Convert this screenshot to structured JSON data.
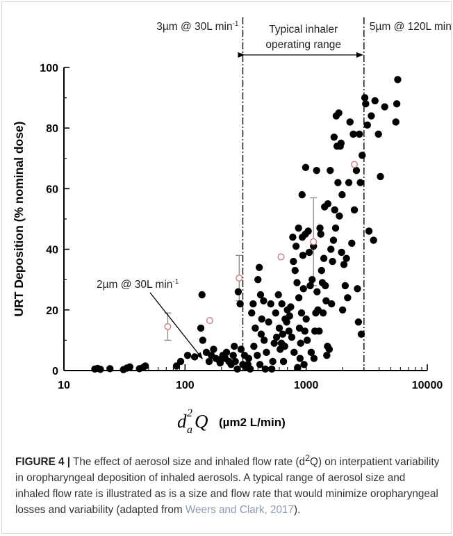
{
  "chart_data": {
    "type": "scatter",
    "x_scale": "log",
    "xlim": [
      10,
      10000
    ],
    "ylim": [
      0,
      100
    ],
    "ylabel": "URT Deposition (% nominal dose)",
    "xlabel_symbol": "d",
    "xlabel_sub": "a",
    "xlabel_sup": "2",
    "xlabel_var": "Q",
    "xlabel_units": "(µm2 L/min)",
    "x_ticks": [
      10,
      100,
      1000,
      10000
    ],
    "x_tick_labels": [
      "10",
      "100",
      "1000",
      "10000"
    ],
    "y_ticks": [
      0,
      20,
      40,
      60,
      80,
      100
    ],
    "y_tick_labels": [
      "0",
      "20",
      "40",
      "60",
      "80",
      "100"
    ],
    "grid": false,
    "colors": {
      "points": "#000000",
      "mean_markers": "#c8848a",
      "error_bars": "#888888",
      "axes": "#000000"
    },
    "reference_lines": [
      {
        "x": 300,
        "label": "3µm @ 30L min",
        "sup": "-1"
      },
      {
        "x": 3000,
        "label": "5µm @ 120L min",
        "sup": "-1"
      }
    ],
    "range_annotation": {
      "from": 300,
      "to": 3000,
      "label_line1": "Typical inhaler",
      "label_line2": "operating range"
    },
    "arrow_annotation": {
      "text": "2µm @ 30L min",
      "sup": "-1",
      "target_x": 130,
      "target_y": 3
    },
    "series": [
      {
        "marker": "filled-circle",
        "points": [
          [
            18,
            0.5
          ],
          [
            19,
            0.7
          ],
          [
            20,
            0.4
          ],
          [
            24,
            0.6
          ],
          [
            31,
            0.3
          ],
          [
            33,
            0.8
          ],
          [
            35,
            1.2
          ],
          [
            42,
            0.6
          ],
          [
            45,
            1.0
          ],
          [
            47,
            1.5
          ],
          [
            85,
            1.5
          ],
          [
            92,
            3
          ],
          [
            105,
            5
          ],
          [
            120,
            4.5
          ],
          [
            135,
            14
          ],
          [
            138,
            25
          ],
          [
            140,
            10
          ],
          [
            150,
            6
          ],
          [
            158,
            3
          ],
          [
            165,
            5
          ],
          [
            172,
            7
          ],
          [
            180,
            4
          ],
          [
            190,
            3.5
          ],
          [
            195,
            2.5
          ],
          [
            205,
            5
          ],
          [
            215,
            4
          ],
          [
            220,
            6
          ],
          [
            230,
            3
          ],
          [
            240,
            2
          ],
          [
            250,
            5
          ],
          [
            255,
            8
          ],
          [
            260,
            3
          ],
          [
            270,
            0.5
          ],
          [
            275,
            26
          ],
          [
            285,
            22
          ],
          [
            290,
            7
          ],
          [
            300,
            2
          ],
          [
            310,
            5
          ],
          [
            320,
            1
          ],
          [
            330,
            2
          ],
          [
            335,
            4
          ],
          [
            345,
            0.5
          ],
          [
            355,
            19
          ],
          [
            365,
            22
          ],
          [
            370,
            8
          ],
          [
            380,
            14
          ],
          [
            395,
            5
          ],
          [
            400,
            30
          ],
          [
            410,
            34
          ],
          [
            415,
            2
          ],
          [
            420,
            25
          ],
          [
            425,
            12
          ],
          [
            430,
            17
          ],
          [
            445,
            23
          ],
          [
            450,
            10
          ],
          [
            460,
            0.5
          ],
          [
            470,
            6
          ],
          [
            490,
            16
          ],
          [
            510,
            22
          ],
          [
            520,
            0.5
          ],
          [
            530,
            3
          ],
          [
            545,
            9
          ],
          [
            560,
            19
          ],
          [
            570,
            11
          ],
          [
            590,
            25
          ],
          [
            600,
            14
          ],
          [
            610,
            7
          ],
          [
            625,
            9
          ],
          [
            630,
            22
          ],
          [
            640,
            12
          ],
          [
            650,
            3
          ],
          [
            665,
            8
          ],
          [
            670,
            17
          ],
          [
            690,
            16
          ],
          [
            700,
            20
          ],
          [
            720,
            13
          ],
          [
            730,
            18
          ],
          [
            745,
            21
          ],
          [
            760,
            11
          ],
          [
            775,
            44
          ],
          [
            785,
            36
          ],
          [
            795,
            6
          ],
          [
            810,
            33
          ],
          [
            825,
            41
          ],
          [
            840,
            29
          ],
          [
            850,
            1
          ],
          [
            865,
            47
          ],
          [
            870,
            24
          ],
          [
            880,
            14
          ],
          [
            890,
            4
          ],
          [
            900,
            9
          ],
          [
            915,
            19
          ],
          [
            925,
            58
          ],
          [
            930,
            44
          ],
          [
            940,
            38
          ],
          [
            950,
            27
          ],
          [
            960,
            2
          ],
          [
            975,
            13
          ],
          [
            985,
            45
          ],
          [
            990,
            67
          ],
          [
            1000,
            17
          ],
          [
            1020,
            10
          ],
          [
            1040,
            46
          ],
          [
            1060,
            39
          ],
          [
            1080,
            28
          ],
          [
            1100,
            6
          ],
          [
            1120,
            30
          ],
          [
            1150,
            41
          ],
          [
            1160,
            4
          ],
          [
            1180,
            13
          ],
          [
            1200,
            19
          ],
          [
            1220,
            66
          ],
          [
            1230,
            26
          ],
          [
            1250,
            20
          ],
          [
            1280,
            13
          ],
          [
            1300,
            47
          ],
          [
            1320,
            45
          ],
          [
            1340,
            33
          ],
          [
            1360,
            29
          ],
          [
            1380,
            19
          ],
          [
            1400,
            37
          ],
          [
            1420,
            54
          ],
          [
            1440,
            28
          ],
          [
            1460,
            23
          ],
          [
            1480,
            5
          ],
          [
            1500,
            8
          ],
          [
            1510,
            55
          ],
          [
            1550,
            7
          ],
          [
            1580,
            66
          ],
          [
            1600,
            40
          ],
          [
            1620,
            22
          ],
          [
            1650,
            36
          ],
          [
            1680,
            43
          ],
          [
            1700,
            77
          ],
          [
            1720,
            53
          ],
          [
            1750,
            47
          ],
          [
            1770,
            84
          ],
          [
            1800,
            74
          ],
          [
            1830,
            62
          ],
          [
            1860,
            85
          ],
          [
            1880,
            51
          ],
          [
            1910,
            74
          ],
          [
            1940,
            75
          ],
          [
            1960,
            39
          ],
          [
            1980,
            58
          ],
          [
            2000,
            20
          ],
          [
            2050,
            35
          ],
          [
            2100,
            28
          ],
          [
            2150,
            37
          ],
          [
            2200,
            24
          ],
          [
            2250,
            62
          ],
          [
            2300,
            82
          ],
          [
            2380,
            42
          ],
          [
            2450,
            78
          ],
          [
            2500,
            53
          ],
          [
            2600,
            66
          ],
          [
            2650,
            27
          ],
          [
            2700,
            16
          ],
          [
            2750,
            78
          ],
          [
            2800,
            62
          ],
          [
            2850,
            12
          ],
          [
            2900,
            71
          ],
          [
            3050,
            90
          ],
          [
            3100,
            88
          ],
          [
            3200,
            81
          ],
          [
            3300,
            46
          ],
          [
            3450,
            84
          ],
          [
            3600,
            43
          ],
          [
            3700,
            89
          ],
          [
            3950,
            78
          ],
          [
            4100,
            64
          ],
          [
            4450,
            87
          ],
          [
            5500,
            82
          ],
          [
            5600,
            88
          ],
          [
            5700,
            96
          ]
        ]
      },
      {
        "marker": "open-circle",
        "points": [
          {
            "x": 72,
            "y": 14.5,
            "lo": 10,
            "hi": 19
          },
          {
            "x": 160,
            "y": 16.5
          },
          {
            "x": 280,
            "y": 30.5,
            "lo": 23,
            "hi": 38
          },
          {
            "x": 620,
            "y": 37.5
          },
          {
            "x": 1150,
            "y": 42.5,
            "lo": 28,
            "hi": 57
          },
          {
            "x": 2500,
            "y": 68
          }
        ]
      }
    ]
  },
  "caption": {
    "label": "FIGURE 4 |",
    "text_before_sup": " The effect of aerosol size and inhaled flow rate (d",
    "sup": "2",
    "text_after_sup": "Q) on interpatient variability in oropharyngeal deposition of inhaled aerosols. A typical range of aerosol size and inhaled flow rate is illustrated as is a size and flow rate that would minimize oropharyngeal losses and variability (adapted from ",
    "citation": "Weers and Clark, 2017",
    "end": ")."
  }
}
